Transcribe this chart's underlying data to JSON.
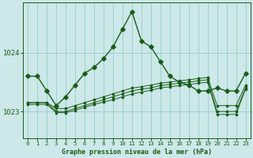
{
  "title": "Graphe pression niveau de la mer (hPa)",
  "bg_color": "#cce8e8",
  "grid_color": "#99cccc",
  "line_color": "#1a5c1a",
  "x_labels": [
    "0",
    "1",
    "2",
    "3",
    "4",
    "5",
    "6",
    "7",
    "8",
    "9",
    "10",
    "11",
    "12",
    "13",
    "14",
    "15",
    "16",
    "17",
    "18",
    "19",
    "20",
    "21",
    "22",
    "23"
  ],
  "ylim": [
    1022.55,
    1024.85
  ],
  "yticks": [
    1023,
    1024
  ],
  "series": {
    "main": [
      1023.6,
      1023.6,
      1023.35,
      1023.1,
      1023.25,
      1023.45,
      1023.65,
      1023.75,
      1023.9,
      1024.1,
      1024.4,
      1024.7,
      1024.2,
      1024.1,
      1023.85,
      1023.6,
      1023.5,
      1023.45,
      1023.35,
      1023.35,
      1023.4,
      1023.35,
      1023.35,
      1023.65
    ],
    "flat1": [
      1023.15,
      1023.15,
      1023.15,
      1023.05,
      1023.05,
      1023.1,
      1023.15,
      1023.2,
      1023.25,
      1023.3,
      1023.35,
      1023.4,
      1023.42,
      1023.45,
      1023.48,
      1023.5,
      1023.52,
      1023.54,
      1023.56,
      1023.58,
      1023.1,
      1023.1,
      1023.1,
      1023.45
    ],
    "flat2": [
      1023.15,
      1023.15,
      1023.15,
      1023.0,
      1023.0,
      1023.05,
      1023.1,
      1023.15,
      1023.2,
      1023.25,
      1023.3,
      1023.35,
      1023.38,
      1023.4,
      1023.44,
      1023.46,
      1023.48,
      1023.5,
      1023.52,
      1023.54,
      1023.0,
      1023.0,
      1023.0,
      1023.4
    ],
    "flat3": [
      1023.12,
      1023.12,
      1023.12,
      1022.98,
      1022.98,
      1023.02,
      1023.07,
      1023.12,
      1023.16,
      1023.2,
      1023.25,
      1023.3,
      1023.33,
      1023.36,
      1023.4,
      1023.42,
      1023.44,
      1023.46,
      1023.48,
      1023.5,
      1022.95,
      1022.95,
      1022.95,
      1023.38
    ]
  }
}
